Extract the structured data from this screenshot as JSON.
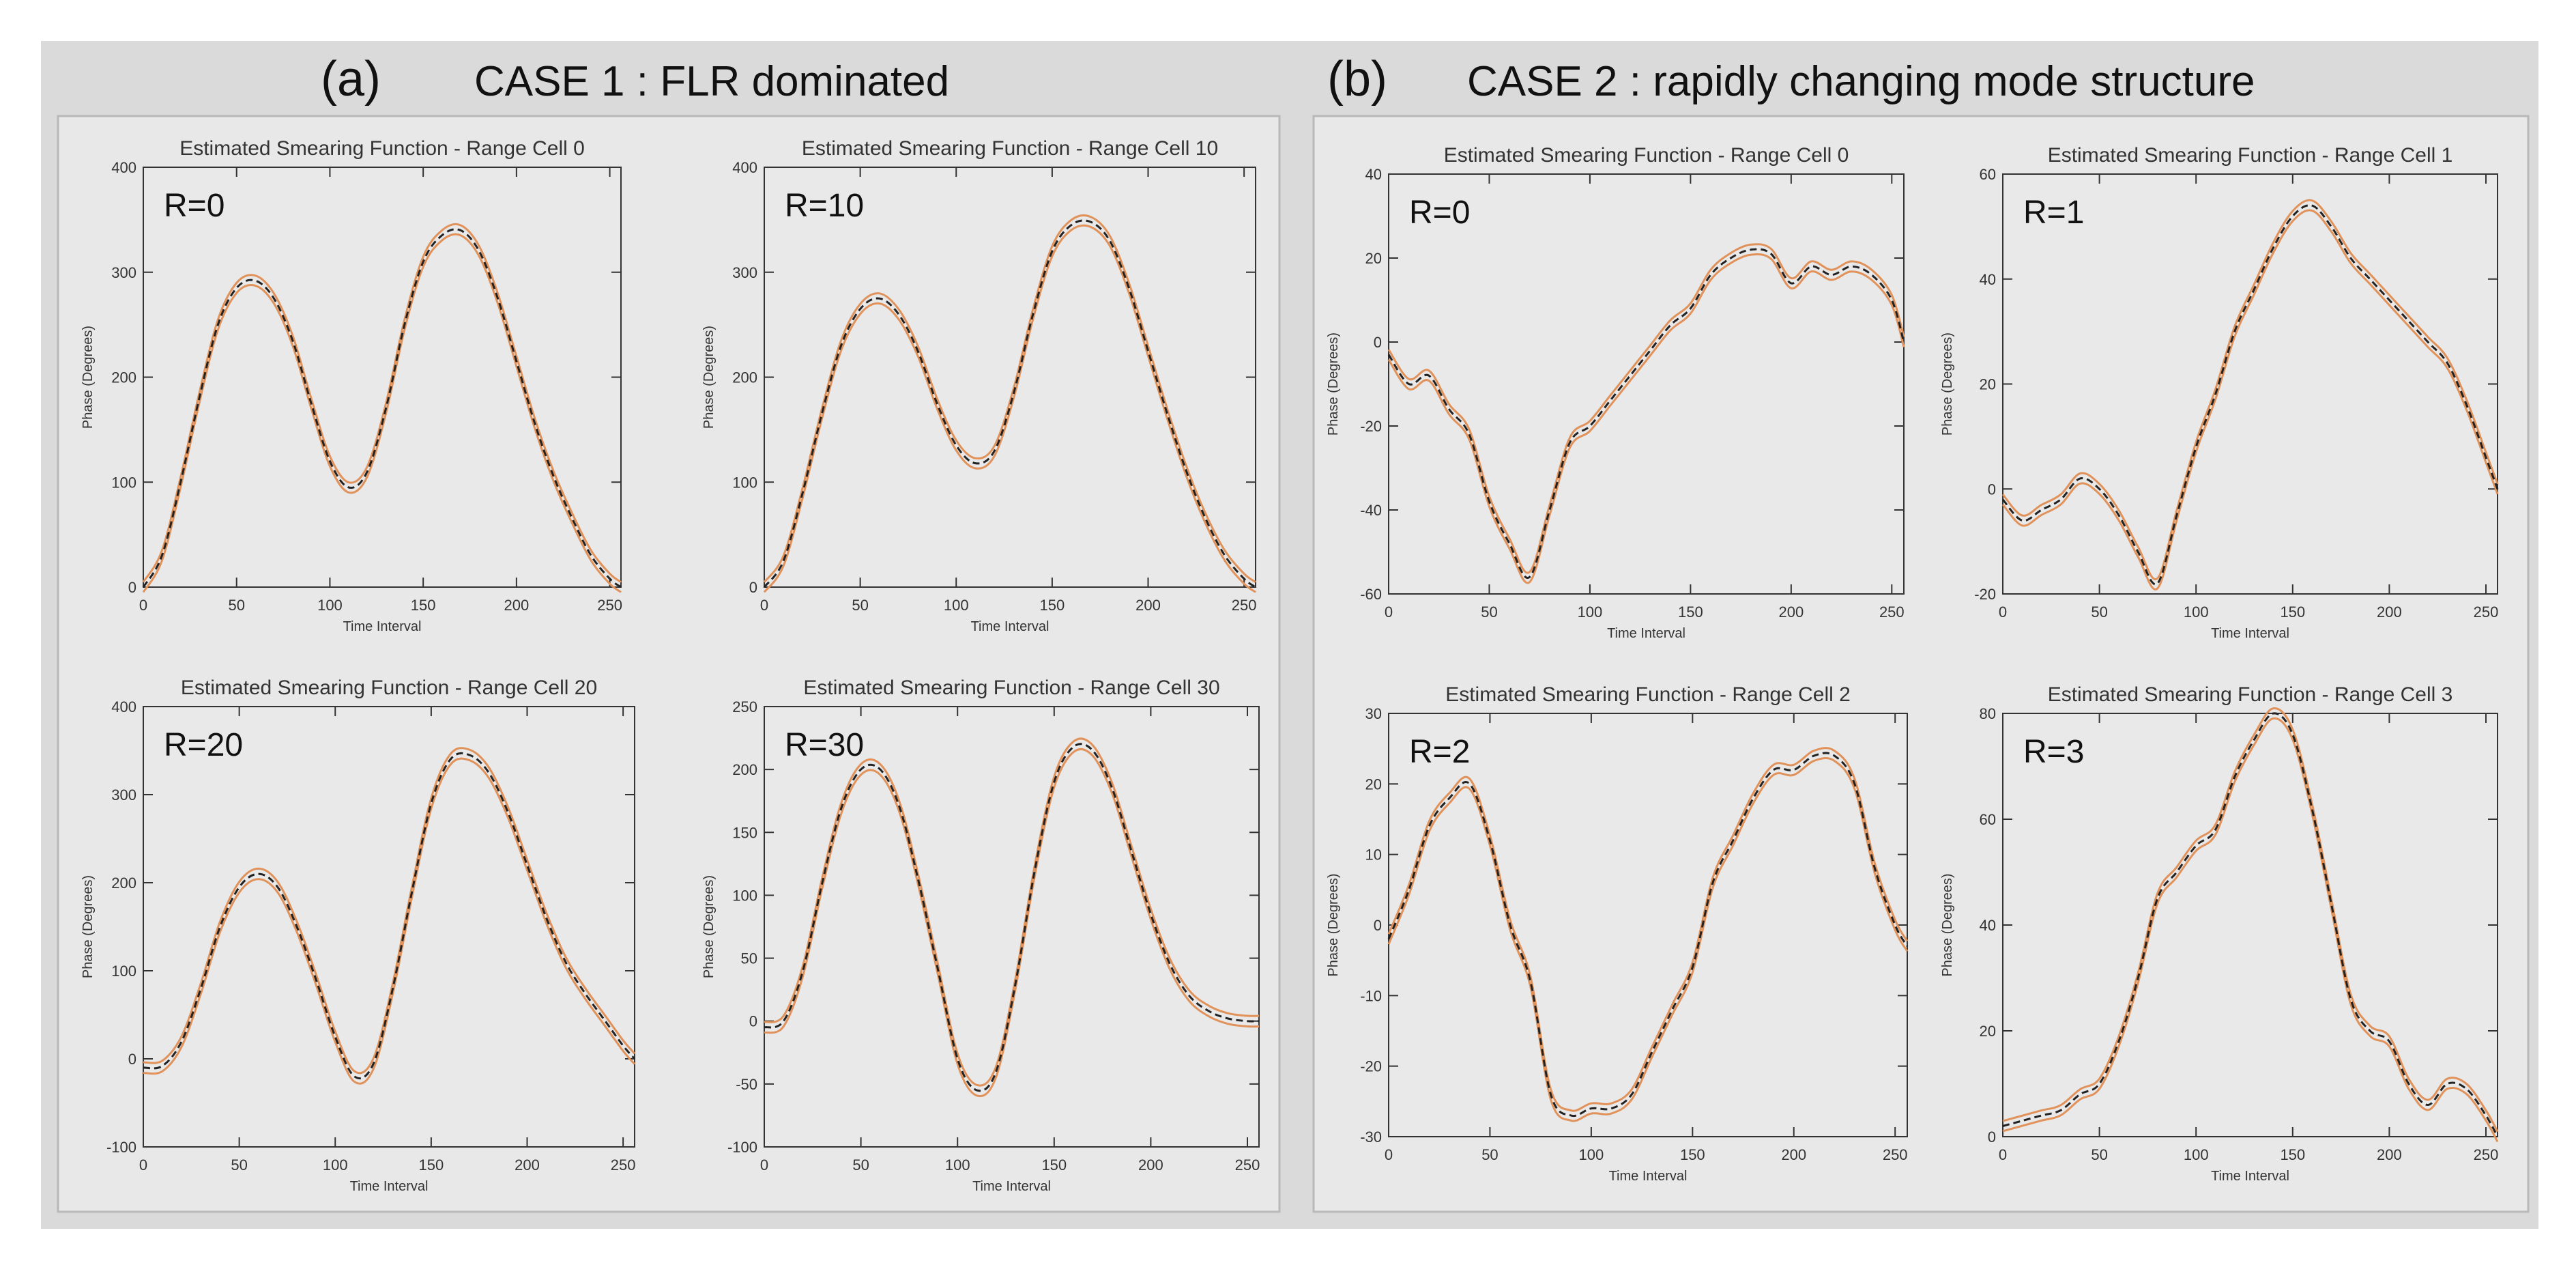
{
  "header_a": {
    "letter": "(a)",
    "text": "CASE 1 : FLR dominated"
  },
  "header_b": {
    "letter": "(b)",
    "text": "CASE 2 : rapidly changing mode structure"
  },
  "colors": {
    "panel_bg": "#e6e6e6",
    "outer_bg": "#d8d8d8",
    "estimate_line": "#e0925a",
    "truth_line": "#222222"
  },
  "chart_data": [
    {
      "type": "line",
      "title": "Estimated Smearing Function - Range Cell 0",
      "annotation": "R=0",
      "xlabel": "Time Interval",
      "ylabel": "Phase (Degrees)",
      "xlim": [
        0,
        256
      ],
      "ylim": [
        0,
        400
      ],
      "xticks": [
        0,
        50,
        100,
        150,
        200,
        250
      ],
      "yticks": [
        0,
        100,
        200,
        300,
        400
      ],
      "x": [
        0,
        10,
        20,
        30,
        40,
        50,
        60,
        70,
        80,
        90,
        100,
        110,
        120,
        130,
        140,
        150,
        160,
        170,
        180,
        190,
        200,
        210,
        220,
        230,
        240,
        250,
        256
      ],
      "series": [
        {
          "values": [
            0,
            30,
            100,
            180,
            250,
            285,
            292,
            275,
            235,
            175,
            120,
            95,
            110,
            170,
            250,
            310,
            335,
            340,
            320,
            275,
            215,
            155,
            105,
            65,
            30,
            8,
            0
          ]
        }
      ]
    },
    {
      "type": "line",
      "title": "Estimated Smearing Function - Range Cell 10",
      "annotation": "R=10",
      "xlabel": "Time Interval",
      "ylabel": "Phase (Degrees)",
      "xlim": [
        0,
        256
      ],
      "ylim": [
        0,
        400
      ],
      "xticks": [
        0,
        50,
        100,
        150,
        200,
        250
      ],
      "yticks": [
        0,
        100,
        200,
        300,
        400
      ],
      "x": [
        0,
        10,
        20,
        30,
        40,
        50,
        60,
        70,
        80,
        90,
        100,
        110,
        120,
        130,
        140,
        150,
        160,
        170,
        180,
        190,
        200,
        210,
        220,
        230,
        240,
        250,
        256
      ],
      "series": [
        {
          "values": [
            0,
            25,
            90,
            165,
            230,
            265,
            275,
            260,
            225,
            175,
            135,
            118,
            130,
            185,
            260,
            320,
            345,
            348,
            330,
            285,
            225,
            165,
            110,
            65,
            30,
            8,
            0
          ]
        }
      ]
    },
    {
      "type": "line",
      "title": "Estimated Smearing Function - Range Cell 20",
      "annotation": "R=20",
      "xlabel": "Time Interval",
      "ylabel": "Phase (Degrees)",
      "xlim": [
        0,
        256
      ],
      "ylim": [
        -100,
        400
      ],
      "xticks": [
        0,
        50,
        100,
        150,
        200,
        250
      ],
      "yticks": [
        -100,
        0,
        100,
        200,
        300,
        400
      ],
      "x": [
        0,
        10,
        20,
        30,
        40,
        50,
        60,
        70,
        80,
        90,
        100,
        110,
        120,
        130,
        140,
        150,
        160,
        170,
        180,
        190,
        200,
        210,
        220,
        230,
        240,
        250,
        256
      ],
      "series": [
        {
          "values": [
            -10,
            -8,
            20,
            80,
            150,
            195,
            210,
            195,
            150,
            90,
            25,
            -20,
            -5,
            80,
            190,
            290,
            340,
            345,
            325,
            280,
            220,
            160,
            110,
            75,
            45,
            15,
            0
          ]
        }
      ]
    },
    {
      "type": "line",
      "title": "Estimated Smearing Function - Range Cell 30",
      "annotation": "R=30",
      "xlabel": "Time Interval",
      "ylabel": "Phase (Degrees)",
      "xlim": [
        0,
        256
      ],
      "ylim": [
        -100,
        250
      ],
      "xticks": [
        0,
        50,
        100,
        150,
        200,
        250
      ],
      "yticks": [
        -100,
        -50,
        0,
        50,
        100,
        150,
        200,
        250
      ],
      "x": [
        0,
        10,
        20,
        30,
        40,
        50,
        60,
        70,
        80,
        90,
        100,
        110,
        120,
        130,
        140,
        150,
        160,
        170,
        180,
        190,
        200,
        210,
        220,
        230,
        240,
        250,
        256
      ],
      "series": [
        {
          "values": [
            -5,
            0,
            40,
            110,
            170,
            200,
            200,
            170,
            110,
            40,
            -30,
            -55,
            -40,
            30,
            120,
            190,
            218,
            215,
            185,
            135,
            85,
            45,
            20,
            8,
            2,
            0,
            0
          ]
        }
      ]
    },
    {
      "type": "line",
      "title": "Estimated Smearing Function - Range Cell 0",
      "annotation": "R=0",
      "xlabel": "Time Interval",
      "ylabel": "Phase (Degrees)",
      "xlim": [
        0,
        256
      ],
      "ylim": [
        -60,
        40
      ],
      "xticks": [
        0,
        50,
        100,
        150,
        200,
        250
      ],
      "yticks": [
        -60,
        -40,
        -20,
        0,
        20,
        40
      ],
      "x": [
        0,
        10,
        20,
        30,
        40,
        50,
        60,
        70,
        80,
        90,
        100,
        110,
        120,
        130,
        140,
        150,
        160,
        170,
        180,
        190,
        200,
        210,
        220,
        230,
        240,
        250,
        256
      ],
      "series": [
        {
          "values": [
            -3,
            -10,
            -8,
            -16,
            -22,
            -38,
            -48,
            -56,
            -40,
            -24,
            -20,
            -14,
            -8,
            -2,
            4,
            8,
            16,
            20,
            22,
            21,
            14,
            18,
            16,
            18,
            16,
            10,
            0
          ]
        }
      ]
    },
    {
      "type": "line",
      "title": "Estimated Smearing Function - Range Cell 1",
      "annotation": "R=1",
      "xlabel": "Time Interval",
      "ylabel": "Phase (Degrees)",
      "xlim": [
        0,
        256
      ],
      "ylim": [
        -20,
        60
      ],
      "xticks": [
        0,
        50,
        100,
        150,
        200,
        250
      ],
      "yticks": [
        -20,
        0,
        20,
        40,
        60
      ],
      "x": [
        0,
        10,
        20,
        30,
        40,
        50,
        60,
        70,
        80,
        90,
        100,
        110,
        120,
        130,
        140,
        150,
        160,
        170,
        180,
        190,
        200,
        210,
        220,
        230,
        240,
        250,
        256
      ],
      "series": [
        {
          "values": [
            -2,
            -6,
            -4,
            -2,
            2,
            0,
            -5,
            -12,
            -18,
            -5,
            8,
            18,
            30,
            38,
            46,
            52,
            54,
            50,
            44,
            40,
            36,
            32,
            28,
            24,
            16,
            6,
            0
          ]
        }
      ]
    },
    {
      "type": "line",
      "title": "Estimated Smearing Function - Range Cell 2",
      "annotation": "R=2",
      "xlabel": "Time Interval",
      "ylabel": "Phase (Degrees)",
      "xlim": [
        0,
        256
      ],
      "ylim": [
        -30,
        30
      ],
      "xticks": [
        0,
        50,
        100,
        150,
        200,
        250
      ],
      "yticks": [
        -30,
        -20,
        -10,
        0,
        10,
        20,
        30
      ],
      "x": [
        0,
        10,
        20,
        30,
        40,
        50,
        60,
        70,
        80,
        90,
        100,
        110,
        120,
        130,
        140,
        150,
        160,
        170,
        180,
        190,
        200,
        210,
        220,
        230,
        240,
        250,
        256
      ],
      "series": [
        {
          "values": [
            -2,
            5,
            14,
            18,
            20,
            12,
            0,
            -8,
            -24,
            -27,
            -26,
            -26,
            -24,
            -18,
            -12,
            -6,
            6,
            12,
            18,
            22,
            22,
            24,
            24,
            20,
            8,
            0,
            -3
          ]
        }
      ]
    },
    {
      "type": "line",
      "title": "Estimated Smearing Function - Range Cell 3",
      "annotation": "R=3",
      "xlabel": "Time Interval",
      "ylabel": "Phase (Degrees)",
      "xlim": [
        0,
        256
      ],
      "ylim": [
        0,
        80
      ],
      "xticks": [
        0,
        50,
        100,
        150,
        200,
        250
      ],
      "yticks": [
        0,
        20,
        40,
        60,
        80
      ],
      "x": [
        0,
        10,
        20,
        30,
        40,
        50,
        60,
        70,
        80,
        90,
        100,
        110,
        120,
        130,
        140,
        150,
        160,
        170,
        180,
        190,
        200,
        210,
        220,
        230,
        240,
        250,
        256
      ],
      "series": [
        {
          "values": [
            2,
            3,
            4,
            5,
            8,
            10,
            18,
            30,
            45,
            50,
            55,
            58,
            68,
            75,
            80,
            76,
            62,
            44,
            26,
            20,
            18,
            10,
            6,
            10,
            9,
            4,
            0
          ]
        }
      ]
    }
  ]
}
